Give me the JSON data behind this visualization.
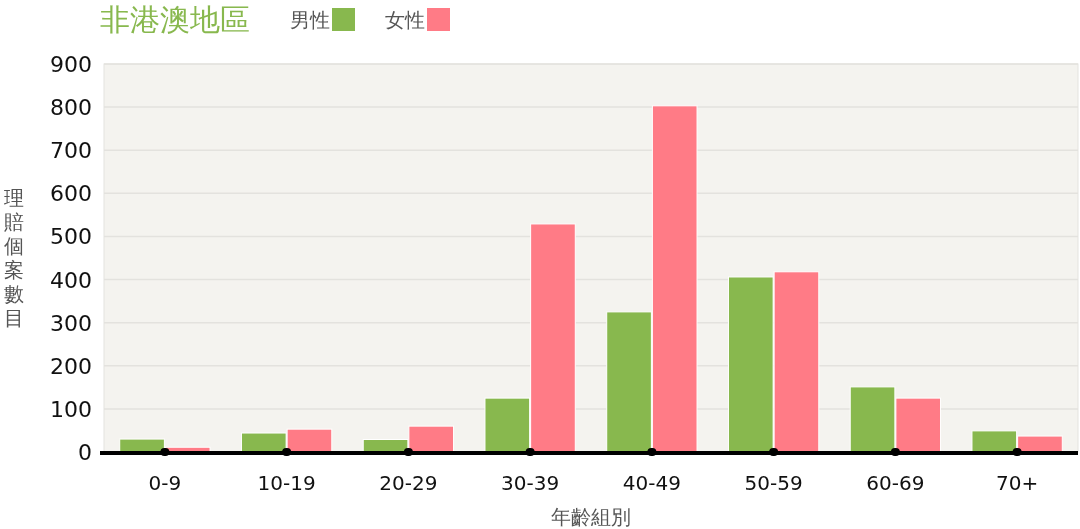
{
  "chart_data": {
    "type": "bar",
    "title": "非港澳地區",
    "xlabel": "年齡組別",
    "ylabel": "理賠個案數目",
    "categories": [
      "0-9",
      "10-19",
      "20-29",
      "30-39",
      "40-49",
      "50-59",
      "60-69",
      "70+"
    ],
    "series": [
      {
        "name": "男性",
        "color": "#88b84e",
        "values": [
          30,
          44,
          29,
          125,
          325,
          406,
          151,
          49
        ]
      },
      {
        "name": "女性",
        "color": "#ff7b86",
        "values": [
          11,
          53,
          60,
          529,
          803,
          418,
          125,
          37
        ]
      }
    ],
    "ylim": [
      0,
      900
    ],
    "yticks": [
      0,
      100,
      200,
      300,
      400,
      500,
      600,
      700,
      800,
      900
    ],
    "grid": "y",
    "legend": "top"
  }
}
